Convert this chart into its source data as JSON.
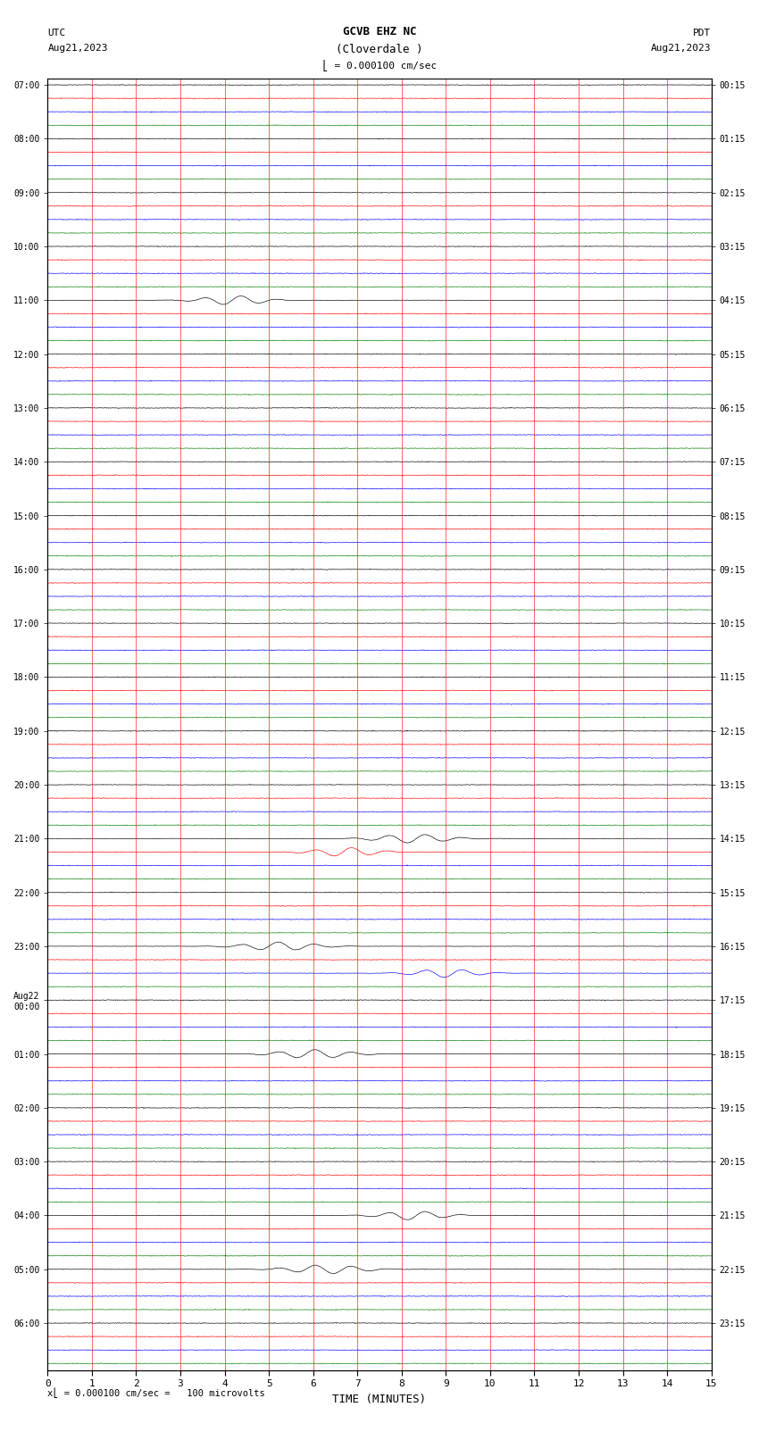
{
  "title_line1": "GCVB EHZ NC",
  "title_line2": "(Cloverdale )",
  "scale_label": "= 0.000100 cm/sec",
  "left_label_top": "UTC",
  "left_label_date": "Aug21,2023",
  "right_label_top": "PDT",
  "right_label_date": "Aug21,2023",
  "bottom_label": "TIME (MINUTES)",
  "bottom_note": "= 0.000100 cm/sec =   100 microvolts",
  "xlabel_ticks": [
    0,
    1,
    2,
    3,
    4,
    5,
    6,
    7,
    8,
    9,
    10,
    11,
    12,
    13,
    14,
    15
  ],
  "left_times_utc": [
    "07:00",
    "",
    "",
    "",
    "08:00",
    "",
    "",
    "",
    "09:00",
    "",
    "",
    "",
    "10:00",
    "",
    "",
    "",
    "11:00",
    "",
    "",
    "",
    "12:00",
    "",
    "",
    "",
    "13:00",
    "",
    "",
    "",
    "14:00",
    "",
    "",
    "",
    "15:00",
    "",
    "",
    "",
    "16:00",
    "",
    "",
    "",
    "17:00",
    "",
    "",
    "",
    "18:00",
    "",
    "",
    "",
    "19:00",
    "",
    "",
    "",
    "20:00",
    "",
    "",
    "",
    "21:00",
    "",
    "",
    "",
    "22:00",
    "",
    "",
    "",
    "23:00",
    "",
    "",
    "",
    "Aug22\n00:00",
    "",
    "",
    "",
    "01:00",
    "",
    "",
    "",
    "02:00",
    "",
    "",
    "",
    "03:00",
    "",
    "",
    "",
    "04:00",
    "",
    "",
    "",
    "05:00",
    "",
    "",
    "",
    "06:00",
    "",
    "",
    ""
  ],
  "right_times_pdt": [
    "00:15",
    "",
    "",
    "",
    "01:15",
    "",
    "",
    "",
    "02:15",
    "",
    "",
    "",
    "03:15",
    "",
    "",
    "",
    "04:15",
    "",
    "",
    "",
    "05:15",
    "",
    "",
    "",
    "06:15",
    "",
    "",
    "",
    "07:15",
    "",
    "",
    "",
    "08:15",
    "",
    "",
    "",
    "09:15",
    "",
    "",
    "",
    "10:15",
    "",
    "",
    "",
    "11:15",
    "",
    "",
    "",
    "12:15",
    "",
    "",
    "",
    "13:15",
    "",
    "",
    "",
    "14:15",
    "",
    "",
    "",
    "15:15",
    "",
    "",
    "",
    "16:15",
    "",
    "",
    "",
    "17:15",
    "",
    "",
    "",
    "18:15",
    "",
    "",
    "",
    "19:15",
    "",
    "",
    "",
    "20:15",
    "",
    "",
    "",
    "21:15",
    "",
    "",
    "",
    "22:15",
    "",
    "",
    "",
    "23:15",
    "",
    "",
    ""
  ],
  "colors_cycle": [
    "black",
    "red",
    "blue",
    "green"
  ],
  "n_rows": 96,
  "fig_width": 8.5,
  "fig_height": 16.13,
  "background_color": "white",
  "trace_amplitude": 0.32,
  "base_noise": 0.012,
  "vline_color": "red",
  "vline_linewidth": 0.6,
  "trace_linewidth": 0.45,
  "event_rows": [
    16,
    56,
    57,
    64,
    66,
    72,
    84,
    88
  ],
  "event_positions": [
    0.28,
    0.55,
    0.45,
    0.35,
    0.6,
    0.4,
    0.55,
    0.42
  ],
  "event_amplitudes": [
    1.8,
    1.4,
    1.2,
    1.6,
    1.3,
    1.5,
    1.4,
    1.3
  ],
  "event_widths": [
    0.003,
    0.004,
    0.003,
    0.004,
    0.003,
    0.004,
    0.003,
    0.004
  ]
}
